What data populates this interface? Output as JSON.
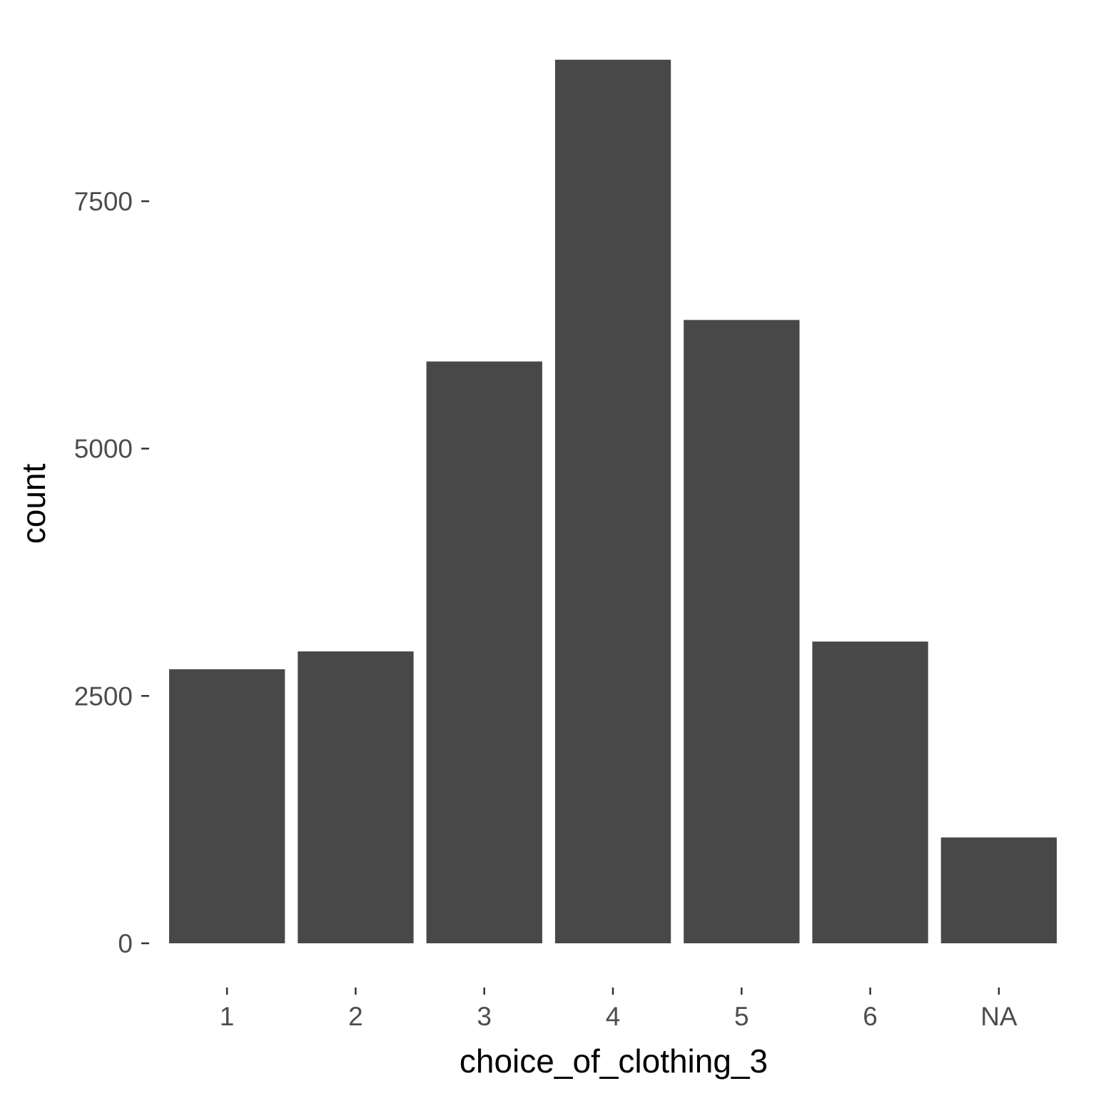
{
  "chart_data": {
    "type": "bar",
    "title": "",
    "xlabel": "choice_of_clothing_3",
    "ylabel": "count",
    "categories": [
      "1",
      "2",
      "3",
      "4",
      "5",
      "6",
      "NA"
    ],
    "values": [
      2770,
      2950,
      5880,
      8930,
      6300,
      3050,
      1070
    ],
    "ylim": [
      0,
      9400
    ],
    "yticks": [
      0,
      2500,
      5000,
      7500
    ],
    "ytick_labels": [
      "0",
      "2500",
      "5000",
      "7500"
    ],
    "grid": false,
    "legend": "none",
    "colors": {
      "bar": "#484848",
      "background": "#ffffff",
      "tick_text": "#4d4d4d",
      "title_text": "#000000"
    }
  }
}
